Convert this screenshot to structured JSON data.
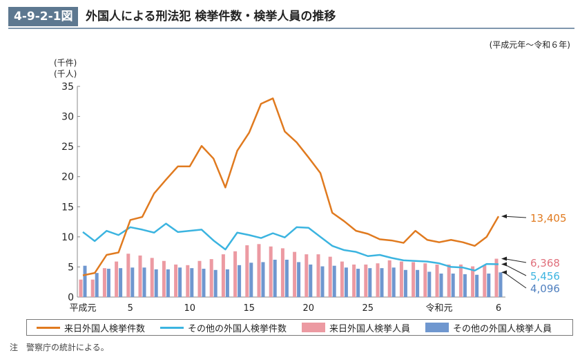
{
  "header": {
    "figure_no": "4-9-2-1図",
    "title": "外国人による刑法犯 検挙件数・検挙人員の推移"
  },
  "period": "(平成元年～令和６年)",
  "note": "注　警察庁の統計による。",
  "chart_data": {
    "type": "bar+line",
    "title": "外国人による刑法犯 検挙件数・検挙人員の推移",
    "ylabel": [
      "(千件)",
      "(千人)"
    ],
    "ylim": [
      0,
      35
    ],
    "yticks": [
      0,
      5,
      10,
      15,
      20,
      25,
      30,
      35
    ],
    "x_tick_labels": [
      {
        "i": 0,
        "label": "平成元"
      },
      {
        "i": 4,
        "label": "5"
      },
      {
        "i": 9,
        "label": "10"
      },
      {
        "i": 14,
        "label": "15"
      },
      {
        "i": 19,
        "label": "20"
      },
      {
        "i": 24,
        "label": "25"
      },
      {
        "i": 30,
        "label": "令和元"
      },
      {
        "i": 35,
        "label": "6"
      }
    ],
    "x_count": 36,
    "series": [
      {
        "name": "来日外国人検挙件数",
        "kind": "line",
        "color": "#e07a1f",
        "end_label": "13,405",
        "values": [
          3.6,
          4.0,
          7.0,
          7.4,
          12.8,
          13.3,
          17.2,
          19.5,
          21.7,
          21.7,
          25.1,
          23.0,
          18.2,
          24.3,
          27.3,
          32.1,
          33.0,
          27.5,
          25.7,
          23.2,
          20.6,
          14.0,
          12.6,
          11.0,
          10.5,
          9.6,
          9.4,
          9.0,
          11.0,
          9.5,
          9.1,
          9.5,
          9.1,
          8.5,
          10.0,
          13.405
        ]
      },
      {
        "name": "その他の外国人検挙件数",
        "kind": "line",
        "color": "#3bb4e0",
        "end_label": "5,456",
        "values": [
          10.8,
          9.3,
          11.0,
          10.3,
          11.6,
          11.2,
          10.7,
          12.2,
          10.8,
          11.0,
          11.2,
          9.4,
          7.9,
          10.7,
          10.3,
          9.8,
          10.6,
          9.9,
          11.6,
          11.5,
          10.0,
          8.5,
          7.8,
          7.5,
          6.8,
          7.0,
          6.5,
          6.1,
          6.0,
          5.9,
          5.6,
          5.0,
          4.9,
          4.4,
          5.5,
          5.456
        ]
      },
      {
        "name": "来日外国人検挙人員",
        "kind": "bar",
        "color": "#ec9aa2",
        "end_label": "6,368",
        "values": [
          2.9,
          2.9,
          4.8,
          5.9,
          7.2,
          6.9,
          6.5,
          6.0,
          5.4,
          5.3,
          6.0,
          6.3,
          7.1,
          7.6,
          8.6,
          8.8,
          8.4,
          8.1,
          7.5,
          7.1,
          7.1,
          6.7,
          5.9,
          5.4,
          5.4,
          5.6,
          6.1,
          5.9,
          5.8,
          5.6,
          5.4,
          5.4,
          5.4,
          5.1,
          5.3,
          6.368
        ]
      },
      {
        "name": "その他の外国人検挙人員",
        "kind": "bar",
        "color": "#6f97cf",
        "end_label": "4,096",
        "values": [
          5.2,
          4.0,
          4.7,
          4.8,
          4.9,
          4.9,
          4.6,
          4.6,
          4.9,
          4.8,
          4.7,
          4.5,
          4.6,
          5.3,
          5.7,
          5.8,
          6.2,
          6.2,
          5.8,
          5.4,
          5.1,
          5.2,
          4.9,
          4.7,
          4.8,
          4.8,
          4.9,
          4.5,
          4.5,
          4.2,
          3.9,
          3.9,
          3.8,
          3.7,
          3.9,
          4.096
        ]
      }
    ],
    "legend_position": "bottom"
  }
}
